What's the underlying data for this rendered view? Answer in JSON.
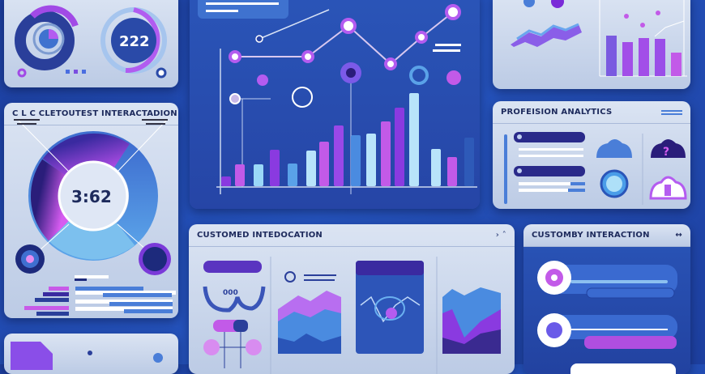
{
  "top_left_widget": {
    "ring_value": "222"
  },
  "left_panel": {
    "title": "C L C CLETOUTEST INTERACTADION",
    "center_value": "3:62"
  },
  "main_chart": {
    "bars": [
      12,
      27,
      27,
      45,
      28,
      44,
      55,
      75,
      63,
      65,
      80,
      97,
      115,
      46,
      36,
      60
    ],
    "line_points": [
      70,
      70,
      32,
      79,
      46,
      15
    ]
  },
  "analytics_panel": {
    "title": "PROFEISION ANALYTICS"
  },
  "introduction_panel": {
    "title": "CUSTOMED INTEDOCATION",
    "gauge_value": "000"
  },
  "interaction_panel": {
    "title": "CUSTOMBY INTERACTION",
    "link_icon": "↔"
  },
  "colors": {
    "background": "#1f45a8",
    "accent_purple": "#9b3fe0",
    "accent_pink": "#d05be8",
    "accent_blue": "#4a8be0",
    "panel_light": "#cfdaee"
  }
}
